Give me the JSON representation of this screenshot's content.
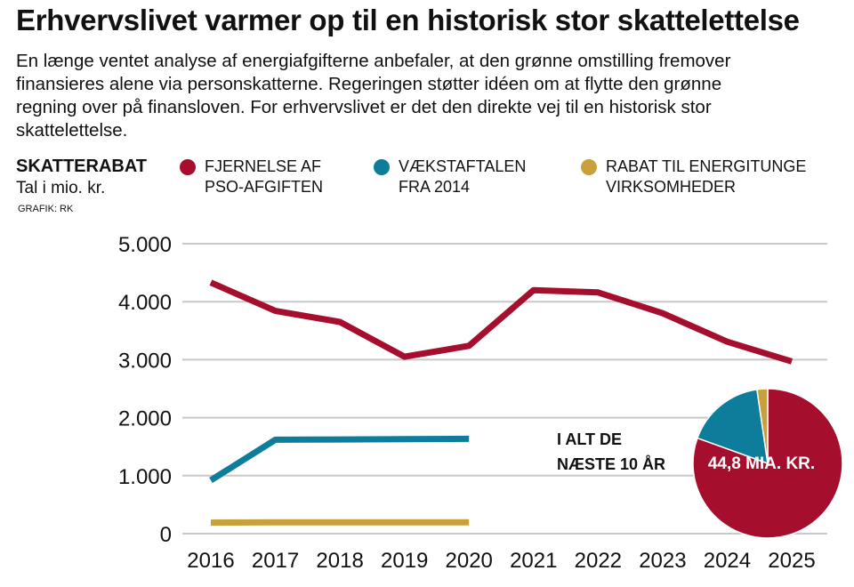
{
  "header": {
    "title": "Erhvervslivet varmer op til en historisk stor skattelettelse",
    "intro_lines": [
      "En længe ventet analyse af energiafgifterne anbefaler, at den grønne omstilling fremover",
      "finansieres alene via personskatterne. Regeringen støtter idéen om at flytte den grønne",
      "regning over på finansloven. For erhvervslivet er det den direkte vej til en historisk stor",
      "skattelettelse."
    ]
  },
  "labels": {
    "title": "SKATTERABAT",
    "unit": "Tal i mio. kr.",
    "credit": "GRAFIK: RK"
  },
  "legend": [
    {
      "line1": "FJERNELSE AF",
      "line2": "PSO-AFGIFTEN",
      "color": "#a50f2d"
    },
    {
      "line1": "VÆKSTAFTALEN",
      "line2": "FRA 2014",
      "color": "#0e7d9b"
    },
    {
      "line1": "RABAT TIL ENERGITUNGE",
      "line2": "VIRKSOMHEDER",
      "color": "#c9a13b"
    }
  ],
  "total": {
    "line1": "I ALT DE",
    "line2": "NÆSTE 10 ÅR",
    "pie_label": "44,8 MIA. KR."
  },
  "chart_data": {
    "type": "line",
    "title": "SKATTERABAT",
    "ylabel": "Tal i mio. kr.",
    "x": [
      "2016",
      "2017",
      "2018",
      "2019",
      "2020",
      "2021",
      "2022",
      "2023",
      "2024",
      "2025"
    ],
    "y_ticks": [
      "0",
      "1.000",
      "2.000",
      "3.000",
      "4.000",
      "5.000"
    ],
    "ylim": [
      0,
      5000
    ],
    "grid": true,
    "series": [
      {
        "name": "FJERNELSE AF PSO-AFGIFTEN",
        "color": "#a50f2d",
        "values": [
          4330,
          3840,
          3650,
          3050,
          3240,
          4200,
          4160,
          3800,
          3310,
          2970
        ]
      },
      {
        "name": "VÆKSTAFTALEN FRA 2014",
        "color": "#0e7d9b",
        "values": [
          920,
          1620,
          1625,
          1630,
          1635,
          null,
          null,
          null,
          null,
          null
        ]
      },
      {
        "name": "RABAT TIL ENERGITUNGE VIRKSOMHEDER",
        "color": "#c9a13b",
        "values": [
          190,
          195,
          195,
          195,
          195,
          null,
          null,
          null,
          null,
          null
        ]
      }
    ],
    "pie": {
      "total": "44,8 MIA. KR.",
      "slices": [
        {
          "name": "FJERNELSE AF PSO-AFGIFTEN",
          "share": 0.805,
          "color": "#a50f2d"
        },
        {
          "name": "VÆKSTAFTALEN FRA 2014",
          "share": 0.172,
          "color": "#0e7d9b"
        },
        {
          "name": "RABAT TIL ENERGITUNGE VIRKSOMHEDER",
          "share": 0.023,
          "color": "#c9a13b"
        }
      ]
    }
  }
}
